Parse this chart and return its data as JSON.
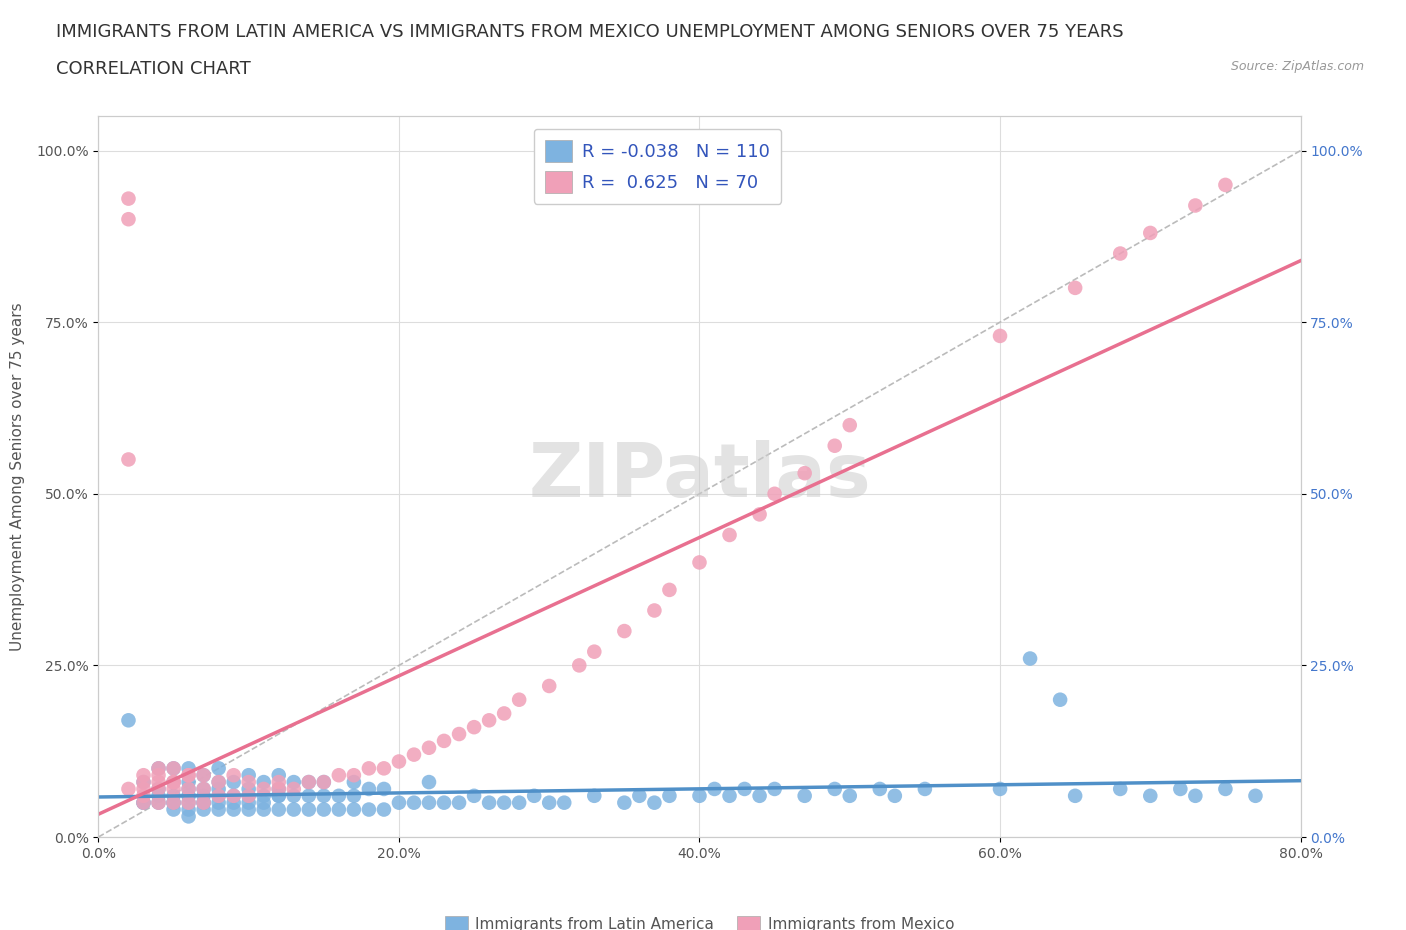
{
  "title_line1": "IMMIGRANTS FROM LATIN AMERICA VS IMMIGRANTS FROM MEXICO UNEMPLOYMENT AMONG SENIORS OVER 75 YEARS",
  "title_line2": "CORRELATION CHART",
  "source_text": "Source: ZipAtlas.com",
  "ylabel": "Unemployment Among Seniors over 75 years",
  "x_min": 0.0,
  "x_max": 0.8,
  "y_min": 0.0,
  "y_max": 1.05,
  "x_ticks": [
    0.0,
    0.2,
    0.4,
    0.6,
    0.8
  ],
  "x_tick_labels": [
    "0.0%",
    "20.0%",
    "40.0%",
    "60.0%",
    "80.0%"
  ],
  "y_ticks": [
    0.0,
    0.25,
    0.5,
    0.75,
    1.0
  ],
  "y_tick_labels": [
    "0.0%",
    "25.0%",
    "50.0%",
    "75.0%",
    "100.0%"
  ],
  "blue_color": "#7EB3E0",
  "pink_color": "#F0A0B8",
  "blue_line_color": "#5090C8",
  "pink_line_color": "#E87090",
  "diag_line_color": "#BBBBBB",
  "legend_R_blue": "-0.038",
  "legend_N_blue": "110",
  "legend_R_pink": "0.625",
  "legend_N_pink": "70",
  "legend_label_blue": "Immigrants from Latin America",
  "legend_label_pink": "Immigrants from Mexico",
  "watermark": "ZIPatlas",
  "title_fontsize": 13,
  "subtitle_fontsize": 13,
  "axis_label_fontsize": 11,
  "tick_fontsize": 10,
  "blue_scatter_x": [
    0.02,
    0.03,
    0.03,
    0.04,
    0.04,
    0.04,
    0.05,
    0.05,
    0.05,
    0.05,
    0.05,
    0.06,
    0.06,
    0.06,
    0.06,
    0.06,
    0.06,
    0.06,
    0.07,
    0.07,
    0.07,
    0.07,
    0.07,
    0.08,
    0.08,
    0.08,
    0.08,
    0.08,
    0.09,
    0.09,
    0.09,
    0.1,
    0.1,
    0.1,
    0.1,
    0.11,
    0.11,
    0.11,
    0.12,
    0.12,
    0.12,
    0.12,
    0.13,
    0.13,
    0.13,
    0.14,
    0.14,
    0.14,
    0.15,
    0.15,
    0.15,
    0.16,
    0.16,
    0.17,
    0.17,
    0.17,
    0.18,
    0.18,
    0.19,
    0.19,
    0.2,
    0.21,
    0.22,
    0.22,
    0.23,
    0.24,
    0.25,
    0.26,
    0.27,
    0.28,
    0.29,
    0.3,
    0.31,
    0.33,
    0.35,
    0.36,
    0.37,
    0.38,
    0.4,
    0.41,
    0.42,
    0.43,
    0.44,
    0.45,
    0.47,
    0.49,
    0.5,
    0.52,
    0.53,
    0.55,
    0.6,
    0.62,
    0.64,
    0.65,
    0.68,
    0.7,
    0.72,
    0.73,
    0.75,
    0.77,
    0.03,
    0.04,
    0.05,
    0.06,
    0.07,
    0.08,
    0.09,
    0.1,
    0.11,
    0.12
  ],
  "blue_scatter_y": [
    0.17,
    0.05,
    0.08,
    0.05,
    0.07,
    0.1,
    0.04,
    0.05,
    0.06,
    0.08,
    0.1,
    0.03,
    0.04,
    0.05,
    0.06,
    0.07,
    0.08,
    0.1,
    0.04,
    0.05,
    0.06,
    0.07,
    0.09,
    0.04,
    0.05,
    0.07,
    0.08,
    0.1,
    0.04,
    0.06,
    0.08,
    0.04,
    0.05,
    0.07,
    0.09,
    0.04,
    0.06,
    0.08,
    0.04,
    0.06,
    0.07,
    0.09,
    0.04,
    0.06,
    0.08,
    0.04,
    0.06,
    0.08,
    0.04,
    0.06,
    0.08,
    0.04,
    0.06,
    0.04,
    0.06,
    0.08,
    0.04,
    0.07,
    0.04,
    0.07,
    0.05,
    0.05,
    0.05,
    0.08,
    0.05,
    0.05,
    0.06,
    0.05,
    0.05,
    0.05,
    0.06,
    0.05,
    0.05,
    0.06,
    0.05,
    0.06,
    0.05,
    0.06,
    0.06,
    0.07,
    0.06,
    0.07,
    0.06,
    0.07,
    0.06,
    0.07,
    0.06,
    0.07,
    0.06,
    0.07,
    0.07,
    0.26,
    0.2,
    0.06,
    0.07,
    0.06,
    0.07,
    0.06,
    0.07,
    0.06,
    0.05,
    0.06,
    0.05,
    0.06,
    0.05,
    0.06,
    0.05,
    0.06,
    0.05,
    0.06
  ],
  "pink_scatter_x": [
    0.02,
    0.02,
    0.02,
    0.03,
    0.03,
    0.03,
    0.03,
    0.04,
    0.04,
    0.04,
    0.04,
    0.05,
    0.05,
    0.05,
    0.05,
    0.06,
    0.06,
    0.06,
    0.07,
    0.07,
    0.07,
    0.08,
    0.08,
    0.09,
    0.09,
    0.1,
    0.1,
    0.11,
    0.12,
    0.12,
    0.13,
    0.14,
    0.15,
    0.16,
    0.17,
    0.18,
    0.19,
    0.2,
    0.21,
    0.22,
    0.23,
    0.24,
    0.25,
    0.26,
    0.27,
    0.28,
    0.3,
    0.32,
    0.33,
    0.35,
    0.37,
    0.38,
    0.4,
    0.42,
    0.44,
    0.45,
    0.47,
    0.49,
    0.5,
    0.6,
    0.65,
    0.68,
    0.7,
    0.73,
    0.75,
    0.02,
    0.03,
    0.04,
    0.05,
    0.06
  ],
  "pink_scatter_y": [
    0.9,
    0.93,
    0.07,
    0.05,
    0.08,
    0.06,
    0.09,
    0.05,
    0.07,
    0.09,
    0.1,
    0.05,
    0.07,
    0.08,
    0.1,
    0.05,
    0.07,
    0.09,
    0.05,
    0.07,
    0.09,
    0.06,
    0.08,
    0.06,
    0.09,
    0.06,
    0.08,
    0.07,
    0.07,
    0.08,
    0.07,
    0.08,
    0.08,
    0.09,
    0.09,
    0.1,
    0.1,
    0.11,
    0.12,
    0.13,
    0.14,
    0.15,
    0.16,
    0.17,
    0.18,
    0.2,
    0.22,
    0.25,
    0.27,
    0.3,
    0.33,
    0.36,
    0.4,
    0.44,
    0.47,
    0.5,
    0.53,
    0.57,
    0.6,
    0.73,
    0.8,
    0.85,
    0.88,
    0.92,
    0.95,
    0.55,
    0.07,
    0.08,
    0.08,
    0.09
  ]
}
